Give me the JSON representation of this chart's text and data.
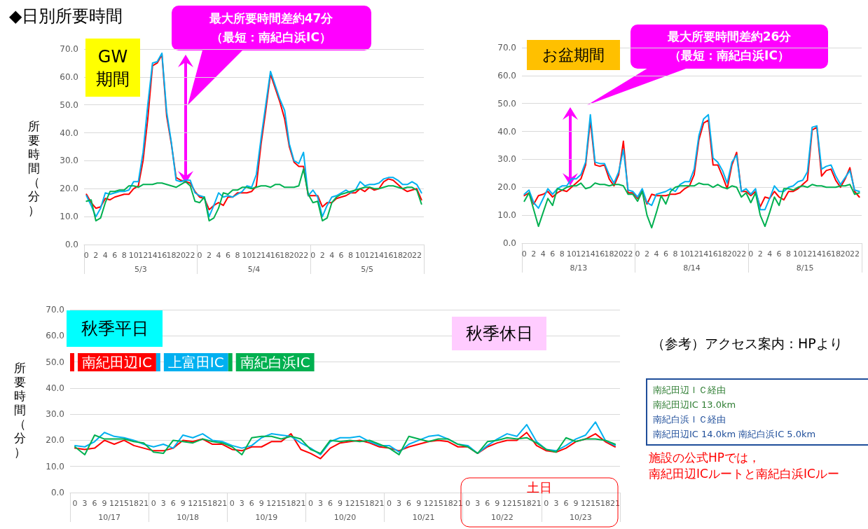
{
  "chart_data": [
    {
      "type": "line",
      "title": "◆日別所要時間",
      "ylabel": "所要時間（分）",
      "categories": [
        "0",
        null,
        "2",
        null,
        "4",
        null,
        "6",
        null,
        "8",
        null,
        "10",
        null,
        "12",
        null,
        "14",
        null,
        "16",
        null,
        "18",
        null,
        "20",
        null,
        "22",
        null,
        "0",
        null,
        "2",
        null,
        "4",
        null,
        "6",
        null,
        "8",
        null,
        "10",
        null,
        "12",
        null,
        "14",
        null,
        "16",
        null,
        "18",
        null,
        "20",
        null,
        "22",
        null,
        "0",
        null,
        "2",
        null,
        "4",
        null,
        "6",
        null,
        "8",
        null,
        "10",
        null,
        "12",
        null,
        "14",
        null,
        "16",
        null,
        "18",
        null,
        "20",
        null,
        "22",
        null
      ],
      "series": [
        {
          "color": "#ff0000",
          "values": [
            18,
            15,
            13,
            13.5,
            16.5,
            16,
            17,
            17.5,
            18,
            18,
            20,
            21,
            30,
            45,
            64,
            65,
            68,
            46,
            36,
            24,
            23,
            22.5,
            22,
            19,
            17,
            16.5,
            12.5,
            14,
            15,
            14,
            17,
            17,
            18.5,
            18.5,
            18.5,
            19,
            21,
            36,
            48,
            61,
            56,
            51,
            45,
            35,
            29.5,
            28,
            28,
            17.5,
            17.5,
            17.5,
            13.5,
            15,
            15,
            16.5,
            17,
            17.5,
            18.5,
            18.5,
            20,
            19,
            20.5,
            19.5,
            20,
            22.5,
            23.5,
            23,
            21.5,
            20,
            19,
            19.5,
            20,
            16
          ]
        },
        {
          "color": "#00b0f0",
          "values": [
            17.5,
            14,
            10,
            13,
            18.5,
            18,
            18.5,
            19,
            19,
            19.5,
            22.5,
            22.5,
            33,
            50,
            65,
            65.5,
            68.5,
            47.5,
            36.5,
            23,
            22.5,
            23,
            23,
            18.5,
            17.5,
            17,
            10,
            14,
            18.5,
            17,
            17.5,
            17,
            18,
            19,
            21,
            20.5,
            25,
            38,
            50,
            62,
            57,
            52,
            48,
            36,
            30,
            29,
            33,
            17.5,
            19.5,
            17,
            10,
            14,
            17,
            17.5,
            18.5,
            19.5,
            18.5,
            19.5,
            22.5,
            21,
            21.5,
            21.5,
            22,
            23.5,
            24,
            24,
            23,
            21.5,
            21.5,
            22.5,
            21.5,
            18.5
          ]
        },
        {
          "color": "#00b050",
          "values": [
            15.5,
            16,
            8.5,
            9.5,
            15,
            19,
            19,
            19.5,
            19.5,
            21,
            21,
            20.5,
            21.5,
            21.5,
            21.5,
            22,
            22,
            21.5,
            21,
            20.5,
            21.5,
            22.5,
            21,
            15.5,
            15,
            17,
            8.5,
            9.5,
            13,
            18.5,
            18,
            19.5,
            19.5,
            20.5,
            20.5,
            20,
            20.5,
            21,
            21,
            20.5,
            21.5,
            21.5,
            20.5,
            20.5,
            20.5,
            21,
            27,
            18,
            15,
            15.5,
            8.5,
            9.5,
            15,
            17,
            18,
            18.5,
            19,
            19.5,
            20,
            20.5,
            20.5,
            20,
            20,
            20.5,
            21,
            21,
            20.5,
            20,
            20.5,
            20.5,
            19.5,
            14.5
          ]
        }
      ],
      "ylim": [
        0,
        70
      ],
      "yticks": [
        {
          "value": 0,
          "label": "0.0"
        },
        {
          "value": 10,
          "label": "10.0"
        },
        {
          "value": 20,
          "label": "20.0"
        },
        {
          "value": 30,
          "label": "30.0"
        },
        {
          "value": 40,
          "label": "40.0"
        },
        {
          "value": 50,
          "label": "50.0"
        },
        {
          "value": 60,
          "label": "60.0"
        },
        {
          "value": 70,
          "label": "70.0"
        }
      ],
      "grid": "y",
      "marker": "none",
      "annotations": [
        "GW\n期間",
        "最大所要時間差約47分",
        "（最短：南紀白浜IC）",
        "5/3",
        "5/4",
        "5/5"
      ]
    },
    {
      "type": "line",
      "categories": [
        "0",
        null,
        "2",
        null,
        "4",
        null,
        "6",
        null,
        "8",
        null,
        "10",
        null,
        "12",
        null,
        "14",
        null,
        "16",
        null,
        "18",
        null,
        "20",
        null,
        "22",
        null,
        "0",
        null,
        "2",
        null,
        "4",
        null,
        "6",
        null,
        "8",
        null,
        "10",
        null,
        "12",
        null,
        "14",
        null,
        "16",
        null,
        "18",
        null,
        "20",
        null,
        "22",
        null,
        "0",
        null,
        "2",
        null,
        "4",
        null,
        "6",
        null,
        "8",
        null,
        "10",
        null,
        "12",
        null,
        "14",
        null,
        "16",
        null,
        "18",
        null,
        "20",
        null,
        "22",
        null
      ],
      "series": [
        {
          "color": "#ff0000",
          "values": [
            17,
            18,
            14,
            17,
            17.5,
            18.5,
            16.5,
            18,
            19,
            18.5,
            20,
            21.5,
            23,
            28,
            44,
            28,
            27.5,
            28,
            23,
            20.5,
            24.5,
            36.5,
            18,
            18,
            16,
            19,
            14,
            17.5,
            17,
            17,
            17,
            17.5,
            17.5,
            18,
            19.5,
            20.5,
            24.5,
            37,
            43,
            44,
            28,
            28,
            24,
            19.5,
            28,
            32.5,
            18.5,
            18.5,
            17,
            18.5,
            13,
            16.5,
            16,
            18.5,
            16.5,
            15.5,
            18.5,
            18.5,
            19.5,
            21,
            22.5,
            40.5,
            41.5,
            24,
            26,
            26.5,
            22.5,
            20,
            23,
            27,
            18.5,
            16.5
          ]
        },
        {
          "color": "#00b0f0",
          "values": [
            17.5,
            19,
            14.5,
            12.5,
            16,
            19.5,
            17.5,
            19.5,
            20.5,
            20.5,
            23,
            23,
            24.5,
            29,
            46,
            29,
            28.5,
            28.5,
            24.5,
            21.5,
            25.5,
            33.5,
            19,
            18.5,
            16.5,
            19.5,
            14.5,
            13.5,
            17.5,
            18,
            18.5,
            19.5,
            18.5,
            21,
            22,
            22,
            26.5,
            38.5,
            44.5,
            46,
            30.5,
            29,
            26,
            21.5,
            29,
            31.5,
            18.5,
            19.5,
            17.5,
            19.5,
            12,
            12,
            16,
            20.5,
            18.5,
            18.5,
            20,
            20.5,
            22,
            22.5,
            25.5,
            41.5,
            42,
            26.5,
            27.5,
            28,
            24,
            21,
            23.5,
            26,
            19,
            18.5
          ]
        },
        {
          "color": "#00b050",
          "values": [
            15,
            18,
            12,
            6,
            11,
            16,
            13.5,
            19.5,
            19,
            20,
            20.5,
            20.5,
            21.5,
            19.5,
            20,
            21.5,
            21,
            21,
            20.5,
            21,
            21,
            20.5,
            17.5,
            17.5,
            15,
            18.5,
            10,
            5.5,
            11,
            17,
            14,
            18.5,
            20,
            20.5,
            20.5,
            20.5,
            20.5,
            21.5,
            21,
            21,
            20,
            21,
            20,
            19.5,
            20.5,
            20,
            16.5,
            18,
            14.5,
            18,
            10,
            6,
            11,
            16.5,
            13.5,
            19.5,
            19.5,
            19,
            20,
            20.5,
            20,
            21,
            20.5,
            20.5,
            20,
            20,
            20,
            20.5,
            20.5,
            21,
            17.5,
            18
          ]
        }
      ],
      "ylim": [
        0,
        70
      ],
      "yticks": [
        {
          "value": 0,
          "label": "0.0"
        },
        {
          "value": 10,
          "label": "10.0"
        },
        {
          "value": 20,
          "label": "20.0"
        },
        {
          "value": 30,
          "label": "30.0"
        },
        {
          "value": 40,
          "label": "40.0"
        },
        {
          "value": 50,
          "label": "50.0"
        },
        {
          "value": 60,
          "label": "60.0"
        },
        {
          "value": 70,
          "label": "70.0"
        }
      ],
      "grid": "y",
      "marker": "none",
      "annotations": [
        "お盆期間",
        "最大所要時間差約26分",
        "（最短：南紀白浜IC）",
        "8/13",
        "8/14",
        "8/15"
      ]
    },
    {
      "type": "line",
      "ylabel": "所要時間（分）",
      "categories": [
        "0",
        "3",
        "6",
        "9",
        "12",
        "15",
        "18",
        "21",
        "0",
        "3",
        "6",
        "9",
        "12",
        "15",
        "18",
        "21",
        "0",
        "3",
        "6",
        "9",
        "12",
        "15",
        "18",
        "21",
        "0",
        "3",
        "6",
        "9",
        "12",
        "15",
        "18",
        "21",
        "0",
        "3",
        "6",
        "9",
        "12",
        "15",
        "18",
        "21",
        "0",
        "3",
        "6",
        "9",
        "12",
        "15",
        "18",
        "21",
        "0",
        "3",
        "6",
        "9",
        "12",
        "15",
        "18",
        "21"
      ],
      "series": [
        {
          "name": "南紀田辺IC",
          "color": "#ff0000",
          "values": [
            17,
            16.5,
            17,
            20,
            18.5,
            20,
            18,
            17,
            16,
            16,
            17,
            20,
            19.5,
            20.5,
            18.5,
            18.5,
            16.5,
            16,
            17.5,
            17.5,
            19.5,
            19.5,
            22.5,
            16.5,
            15,
            13,
            17,
            19,
            19.5,
            20,
            19,
            17.5,
            17,
            16,
            17.5,
            18.5,
            19.5,
            20,
            19.5,
            17.5,
            17.5,
            15,
            17.5,
            19,
            20,
            20,
            23,
            18,
            16,
            15.5,
            17,
            19.5,
            20.5,
            22.5,
            19.5,
            17.5
          ]
        },
        {
          "name": "上富田IC",
          "color": "#00b0f0",
          "values": [
            18,
            17.5,
            19.5,
            23,
            21.5,
            21,
            20,
            18.5,
            17.5,
            18.5,
            17,
            22,
            21,
            22.5,
            20,
            19.5,
            18,
            17,
            18,
            21,
            22.5,
            22,
            21.5,
            19,
            17,
            14.5,
            19.5,
            21,
            21,
            21.5,
            19.5,
            18,
            18,
            15.5,
            18.5,
            20,
            21.5,
            22,
            20.5,
            18.5,
            18,
            15,
            18,
            20.5,
            22.5,
            21.5,
            26,
            19.5,
            16.5,
            16,
            18,
            20.5,
            22,
            27,
            20,
            18
          ]
        },
        {
          "name": "南紀白浜IC",
          "color": "#00b050",
          "values": [
            17.5,
            14.5,
            22,
            20.5,
            20.5,
            20.5,
            19.5,
            19,
            15.5,
            15,
            20,
            19.5,
            19,
            20.5,
            19.5,
            19,
            17.5,
            14.5,
            21,
            21.5,
            21.5,
            20.5,
            21.5,
            20.5,
            16.5,
            15,
            20,
            19.5,
            20,
            19.5,
            20,
            18.5,
            17,
            14.5,
            21.5,
            20.5,
            19.5,
            20.5,
            20.5,
            18.5,
            17.5,
            15,
            19.5,
            20,
            21,
            20.5,
            21,
            19,
            16.5,
            15.5,
            21,
            19.5,
            20.5,
            20.5,
            20,
            18.5
          ]
        }
      ],
      "ylim": [
        0,
        70
      ],
      "yticks": [
        {
          "value": 0,
          "label": "0.0"
        },
        {
          "value": 10,
          "label": "10.0"
        },
        {
          "value": 20,
          "label": "20.0"
        },
        {
          "value": 30,
          "label": "30.0"
        },
        {
          "value": 40,
          "label": "40.0"
        },
        {
          "value": 50,
          "label": "50.0"
        },
        {
          "value": 60,
          "label": "60.0"
        },
        {
          "value": 70,
          "label": "70.0"
        }
      ],
      "grid": "y",
      "marker": "none",
      "legend": "top left",
      "annotations": [
        "秋季平日",
        "秋季休日",
        "土日",
        "10/17",
        "10/18",
        "10/19",
        "10/20",
        "10/21",
        "10/22",
        "10/23"
      ]
    },
    {
      "type": "other",
      "title": "（参考）アクセス案内：HPより",
      "annotations": [
        "南紀田辺ＩＣ経由",
        "南紀田辺IC 13.0km",
        "南紀白浜ＩＣ経由",
        "南紀田辺IC 14.0km 南紀白浜IC 5.0km",
        "施設の公式HPでは，",
        "南紀田辺ICルートと南紀白浜ICルー"
      ]
    }
  ]
}
